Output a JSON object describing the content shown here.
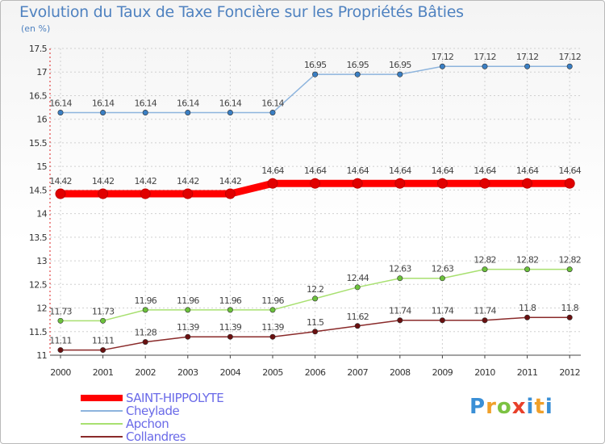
{
  "chart_data": {
    "type": "line",
    "title": "Evolution du Taux de Taxe Foncière sur les Propriétés Bâties",
    "ylabel": "(en %)",
    "xlabel": "",
    "categories": [
      "2000",
      "2001",
      "2002",
      "2003",
      "2004",
      "2005",
      "2006",
      "2007",
      "2008",
      "2009",
      "2010",
      "2011",
      "2012"
    ],
    "ylim": [
      11,
      17.5
    ],
    "yticks": [
      "11",
      "11.5",
      "12",
      "12.5",
      "13",
      "13.5",
      "14",
      "14.5",
      "15",
      "15.5",
      "16",
      "16.5",
      "17",
      "17.5"
    ],
    "series": [
      {
        "name": "SAINT-HIPPOLYTE",
        "color": "#ff0000",
        "marker": "#e00000",
        "thick": true,
        "values": [
          14.42,
          14.42,
          14.42,
          14.42,
          14.42,
          14.64,
          14.64,
          14.64,
          14.64,
          14.64,
          14.64,
          14.64,
          14.64
        ],
        "labels": [
          "14.42",
          "14.42",
          "14.42",
          "14.42",
          "14.42",
          "14.64",
          "14.64",
          "14.64",
          "14.64",
          "14.64",
          "14.64",
          "14.64",
          "14.64"
        ]
      },
      {
        "name": "Cheylade",
        "color": "#8db4dd",
        "marker": "#3a7fc4",
        "thick": false,
        "values": [
          16.14,
          16.14,
          16.14,
          16.14,
          16.14,
          16.14,
          16.95,
          16.95,
          16.95,
          17.12,
          17.12,
          17.12,
          17.12
        ],
        "labels": [
          "16.14",
          "16.14",
          "16.14",
          "16.14",
          "16.14",
          "16.14",
          "16.95",
          "16.95",
          "16.95",
          "17.12",
          "17.12",
          "17.12",
          "17.12"
        ]
      },
      {
        "name": "Apchon",
        "color": "#a8e070",
        "marker": "#6cc23c",
        "thick": false,
        "values": [
          11.73,
          11.73,
          11.96,
          11.96,
          11.96,
          11.96,
          12.2,
          12.44,
          12.63,
          12.63,
          12.82,
          12.82,
          12.82
        ],
        "labels": [
          "11.73",
          "11.73",
          "11.96",
          "11.96",
          "11.96",
          "11.96",
          "12.2",
          "12.44",
          "12.63",
          "12.63",
          "12.82",
          "12.82",
          "12.82"
        ]
      },
      {
        "name": "Collandres",
        "color": "#8a2a2a",
        "marker": "#6a1010",
        "thick": false,
        "values": [
          11.11,
          11.11,
          11.28,
          11.39,
          11.39,
          11.39,
          11.5,
          11.62,
          11.74,
          11.74,
          11.74,
          11.8,
          11.8
        ],
        "labels": [
          "11.11",
          "11.11",
          "11.28",
          "11.39",
          "11.39",
          "11.39",
          "11.5",
          "11.62",
          "11.74",
          "11.74",
          "11.74",
          "11.8",
          "11.8"
        ]
      }
    ],
    "legend_position": "bottom-left"
  },
  "logo": {
    "p": "P",
    "r": "r",
    "o": "o",
    "x": "x",
    "i": "i",
    "t": "t",
    "i2": "i"
  }
}
